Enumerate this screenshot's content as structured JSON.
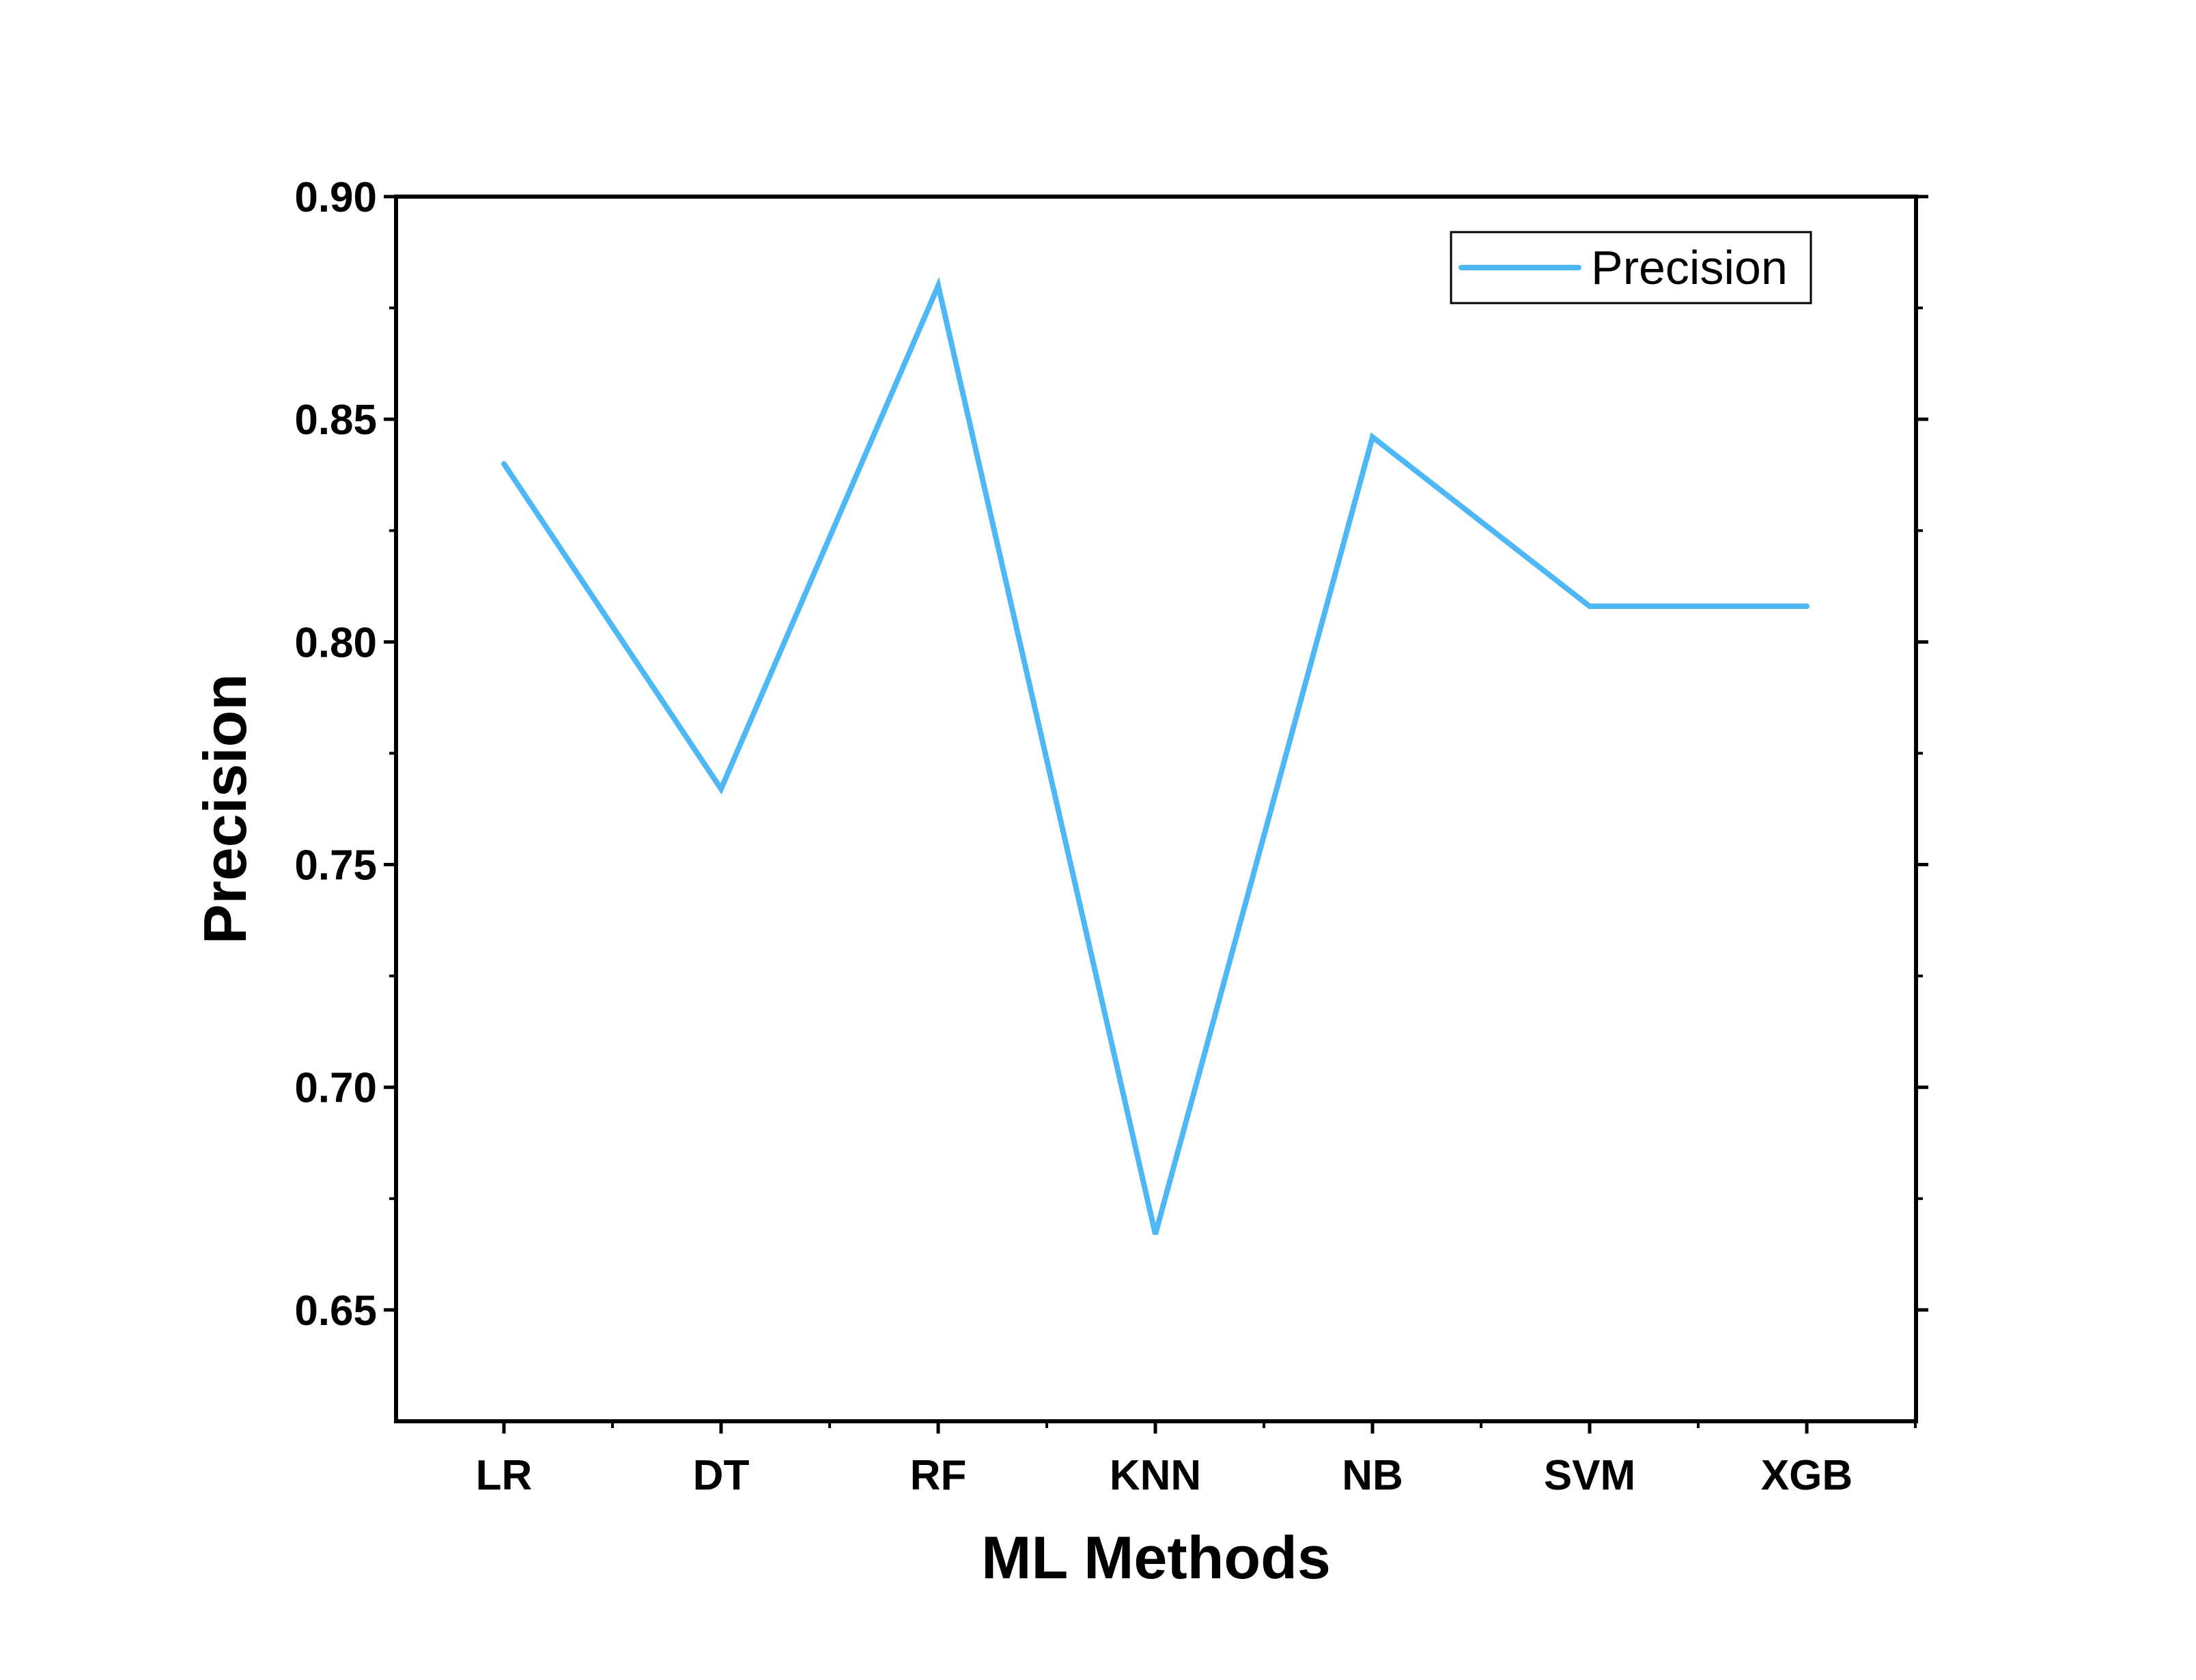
{
  "chart_data": {
    "type": "line",
    "title": "",
    "xlabel": "ML Methods",
    "ylabel": "Precision",
    "categories": [
      "LR",
      "DT",
      "RF",
      "KNN",
      "NB",
      "SVM",
      "XGB"
    ],
    "series": [
      {
        "name": "Precision",
        "values": [
          0.84,
          0.767,
          0.88,
          0.667,
          0.846,
          0.808,
          0.808
        ],
        "color": "#4db8f5"
      }
    ],
    "ylim": [
      0.625,
      0.9
    ],
    "yticks": [
      0.65,
      0.7,
      0.75,
      0.8,
      0.85,
      0.9
    ],
    "ytick_labels": [
      "0.65",
      "0.70",
      "0.75",
      "0.80",
      "0.85",
      "0.90"
    ],
    "grid": false,
    "legend_position": "top-right"
  }
}
